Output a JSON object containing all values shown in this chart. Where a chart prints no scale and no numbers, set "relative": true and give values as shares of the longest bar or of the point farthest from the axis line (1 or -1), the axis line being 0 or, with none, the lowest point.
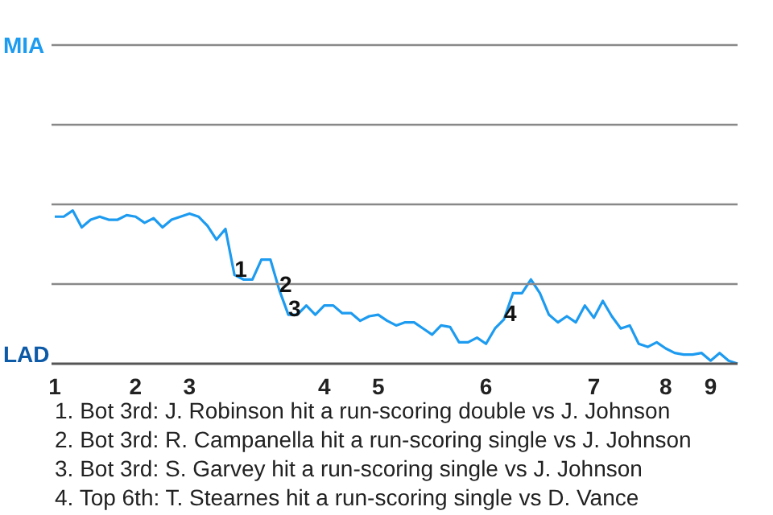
{
  "chart_data": {
    "type": "line",
    "relative": true,
    "categories": [
      "1",
      null,
      null,
      null,
      null,
      null,
      null,
      null,
      null,
      "2",
      null,
      null,
      null,
      null,
      null,
      "3",
      null,
      null,
      null,
      null,
      null,
      null,
      null,
      null,
      null,
      null,
      null,
      null,
      null,
      null,
      "4",
      null,
      null,
      null,
      null,
      null,
      "5",
      null,
      null,
      null,
      null,
      null,
      null,
      null,
      null,
      null,
      null,
      null,
      "6",
      null,
      null,
      null,
      null,
      null,
      null,
      null,
      null,
      null,
      null,
      null,
      "7",
      null,
      null,
      null,
      null,
      null,
      null,
      null,
      "8",
      null,
      null,
      null,
      null,
      "9",
      null,
      null,
      null
    ],
    "marker": "none",
    "line_style": "solid",
    "ref_lines": [
      {
        "axis": "y",
        "value": 0.52,
        "color": "#888888"
      },
      {
        "axis": "y",
        "value": 1.04,
        "color": "#888888"
      },
      {
        "axis": "y",
        "value": 1.56,
        "color": "#888888"
      },
      {
        "axis": "y",
        "value": 2.08,
        "color": "#888888"
      }
    ],
    "series": [
      {
        "color": "#1d9bf0",
        "values": [
          0.96,
          0.96,
          1,
          0.89,
          0.94,
          0.96,
          0.94,
          0.94,
          0.97,
          0.96,
          0.92,
          0.95,
          0.89,
          0.94,
          0.96,
          0.98,
          0.96,
          0.9,
          0.81,
          0.88,
          0.58,
          0.55,
          0.55,
          0.68,
          0.68,
          0.48,
          0.32,
          0.32,
          0.38,
          0.32,
          0.38,
          0.38,
          0.33,
          0.33,
          0.28,
          0.31,
          0.32,
          0.28,
          0.25,
          0.27,
          0.27,
          0.23,
          0.19,
          0.25,
          0.24,
          0.14,
          0.14,
          0.17,
          0.13,
          0.23,
          0.29,
          0.46,
          0.46,
          0.55,
          0.46,
          0.32,
          0.27,
          0.31,
          0.27,
          0.38,
          0.3,
          0.41,
          0.31,
          0.23,
          0.25,
          0.13,
          0.11,
          0.14,
          0.1,
          0.07,
          0.06,
          0.06,
          0.07,
          0.02,
          0.07,
          0.02,
          0
        ]
      }
    ],
    "annotations": [
      {
        "text": "1",
        "y": 0.58
      },
      {
        "text": "2",
        "y": 0.48
      },
      {
        "text": "3",
        "y": 0.32
      },
      {
        "text": "4",
        "y": 0.29
      },
      "MIA",
      "LAD",
      "1. Bot 3rd: J. Robinson hit a run-scoring double vs J. Johnson",
      "2. Bot 3rd: R. Campanella hit a run-scoring single vs J. Johnson",
      "3. Bot 3rd: S. Garvey hit a run-scoring single vs J. Johnson",
      "4. Top 6th: T. Stearnes hit a run-scoring single vs D. Vance"
    ]
  }
}
